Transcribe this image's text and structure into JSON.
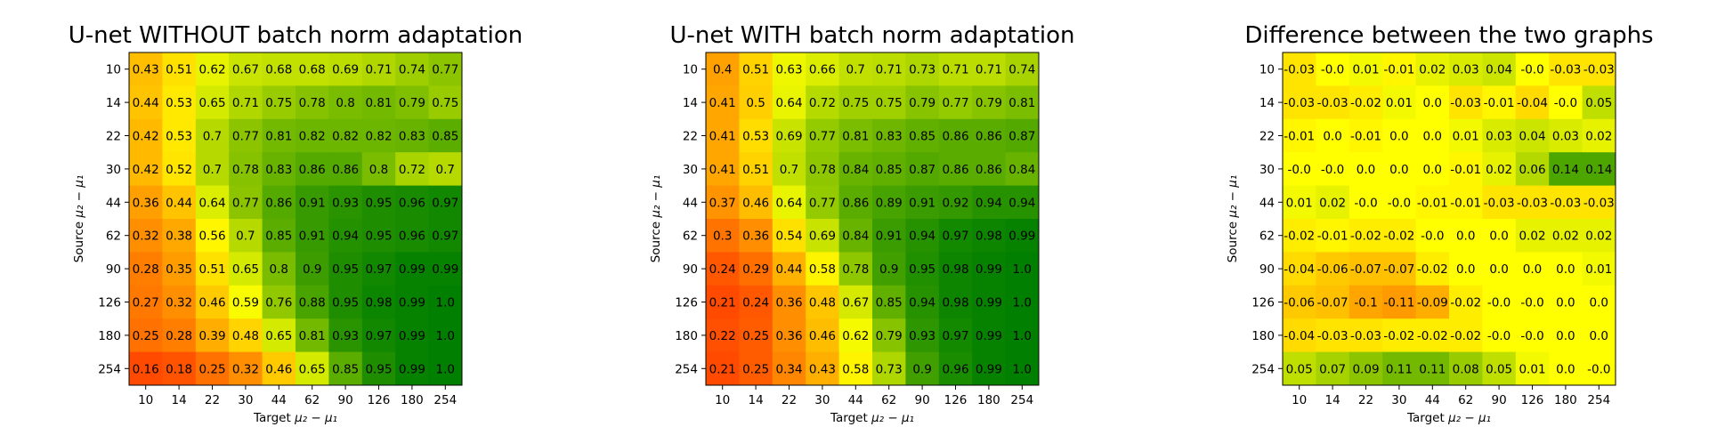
{
  "chart_data": [
    {
      "type": "heatmap",
      "title": "U-net WITHOUT batch norm adaptation",
      "xlabel": "Target",
      "ylabel": "Source",
      "axis_math": "μ₂ − μ₁",
      "x": [
        "10",
        "14",
        "22",
        "30",
        "44",
        "62",
        "90",
        "126",
        "180",
        "254"
      ],
      "y": [
        "10",
        "14",
        "22",
        "30",
        "44",
        "62",
        "90",
        "126",
        "180",
        "254"
      ],
      "values": [
        [
          0.43,
          0.51,
          0.62,
          0.67,
          0.68,
          0.68,
          0.69,
          0.71,
          0.74,
          0.77
        ],
        [
          0.44,
          0.53,
          0.65,
          0.71,
          0.75,
          0.78,
          0.8,
          0.81,
          0.79,
          0.75
        ],
        [
          0.42,
          0.53,
          0.7,
          0.77,
          0.81,
          0.82,
          0.82,
          0.82,
          0.83,
          0.85
        ],
        [
          0.42,
          0.52,
          0.7,
          0.78,
          0.83,
          0.86,
          0.86,
          0.8,
          0.72,
          0.7
        ],
        [
          0.36,
          0.44,
          0.64,
          0.77,
          0.86,
          0.91,
          0.93,
          0.95,
          0.96,
          0.97
        ],
        [
          0.32,
          0.38,
          0.56,
          0.7,
          0.85,
          0.91,
          0.94,
          0.95,
          0.96,
          0.97
        ],
        [
          0.28,
          0.35,
          0.51,
          0.65,
          0.8,
          0.9,
          0.95,
          0.97,
          0.99,
          0.99
        ],
        [
          0.27,
          0.32,
          0.46,
          0.59,
          0.76,
          0.88,
          0.95,
          0.98,
          0.99,
          1.0
        ],
        [
          0.25,
          0.28,
          0.39,
          0.48,
          0.65,
          0.81,
          0.93,
          0.97,
          0.99,
          1.0
        ],
        [
          0.16,
          0.18,
          0.25,
          0.32,
          0.46,
          0.65,
          0.85,
          0.95,
          0.99,
          1.0
        ]
      ],
      "labels": [
        [
          "0.43",
          "0.51",
          "0.62",
          "0.67",
          "0.68",
          "0.68",
          "0.69",
          "0.71",
          "0.74",
          "0.77"
        ],
        [
          "0.44",
          "0.53",
          "0.65",
          "0.71",
          "0.75",
          "0.78",
          "0.8",
          "0.81",
          "0.79",
          "0.75"
        ],
        [
          "0.42",
          "0.53",
          "0.7",
          "0.77",
          "0.81",
          "0.82",
          "0.82",
          "0.82",
          "0.83",
          "0.85"
        ],
        [
          "0.42",
          "0.52",
          "0.7",
          "0.78",
          "0.83",
          "0.86",
          "0.86",
          "0.8",
          "0.72",
          "0.7"
        ],
        [
          "0.36",
          "0.44",
          "0.64",
          "0.77",
          "0.86",
          "0.91",
          "0.93",
          "0.95",
          "0.96",
          "0.97"
        ],
        [
          "0.32",
          "0.38",
          "0.56",
          "0.7",
          "0.85",
          "0.91",
          "0.94",
          "0.95",
          "0.96",
          "0.97"
        ],
        [
          "0.28",
          "0.35",
          "0.51",
          "0.65",
          "0.8",
          "0.9",
          "0.95",
          "0.97",
          "0.99",
          "0.99"
        ],
        [
          "0.27",
          "0.32",
          "0.46",
          "0.59",
          "0.76",
          "0.88",
          "0.95",
          "0.98",
          "0.99",
          "1.0"
        ],
        [
          "0.25",
          "0.28",
          "0.39",
          "0.48",
          "0.65",
          "0.81",
          "0.93",
          "0.97",
          "0.99",
          "1.0"
        ],
        [
          "0.16",
          "0.18",
          "0.25",
          "0.32",
          "0.46",
          "0.65",
          "0.85",
          "0.95",
          "0.99",
          "1.0"
        ]
      ],
      "color_range": [
        0.16,
        1.0
      ],
      "colormap": [
        "#ff4a00",
        "#ffff00",
        "#007f00"
      ]
    },
    {
      "type": "heatmap",
      "title": "U-net WITH batch norm adaptation",
      "xlabel": "Target",
      "ylabel": "Source",
      "axis_math": "μ₂ − μ₁",
      "x": [
        "10",
        "14",
        "22",
        "30",
        "44",
        "62",
        "90",
        "126",
        "180",
        "254"
      ],
      "y": [
        "10",
        "14",
        "22",
        "30",
        "44",
        "62",
        "90",
        "126",
        "180",
        "254"
      ],
      "values": [
        [
          0.4,
          0.51,
          0.63,
          0.66,
          0.7,
          0.71,
          0.73,
          0.71,
          0.71,
          0.74
        ],
        [
          0.41,
          0.5,
          0.64,
          0.72,
          0.75,
          0.75,
          0.79,
          0.77,
          0.79,
          0.81
        ],
        [
          0.41,
          0.53,
          0.69,
          0.77,
          0.81,
          0.83,
          0.85,
          0.86,
          0.86,
          0.87
        ],
        [
          0.41,
          0.51,
          0.7,
          0.78,
          0.84,
          0.85,
          0.87,
          0.86,
          0.86,
          0.84
        ],
        [
          0.37,
          0.46,
          0.64,
          0.77,
          0.86,
          0.89,
          0.91,
          0.92,
          0.94,
          0.94
        ],
        [
          0.3,
          0.36,
          0.54,
          0.69,
          0.84,
          0.91,
          0.94,
          0.97,
          0.98,
          0.99
        ],
        [
          0.24,
          0.29,
          0.44,
          0.58,
          0.78,
          0.9,
          0.95,
          0.98,
          0.99,
          1.0
        ],
        [
          0.21,
          0.24,
          0.36,
          0.48,
          0.67,
          0.85,
          0.94,
          0.98,
          0.99,
          1.0
        ],
        [
          0.22,
          0.25,
          0.36,
          0.46,
          0.62,
          0.79,
          0.93,
          0.97,
          0.99,
          1.0
        ],
        [
          0.21,
          0.25,
          0.34,
          0.43,
          0.58,
          0.73,
          0.9,
          0.96,
          0.99,
          1.0
        ]
      ],
      "labels": [
        [
          "0.4",
          "0.51",
          "0.63",
          "0.66",
          "0.7",
          "0.71",
          "0.73",
          "0.71",
          "0.71",
          "0.74"
        ],
        [
          "0.41",
          "0.5",
          "0.64",
          "0.72",
          "0.75",
          "0.75",
          "0.79",
          "0.77",
          "0.79",
          "0.81"
        ],
        [
          "0.41",
          "0.53",
          "0.69",
          "0.77",
          "0.81",
          "0.83",
          "0.85",
          "0.86",
          "0.86",
          "0.87"
        ],
        [
          "0.41",
          "0.51",
          "0.7",
          "0.78",
          "0.84",
          "0.85",
          "0.87",
          "0.86",
          "0.86",
          "0.84"
        ],
        [
          "0.37",
          "0.46",
          "0.64",
          "0.77",
          "0.86",
          "0.89",
          "0.91",
          "0.92",
          "0.94",
          "0.94"
        ],
        [
          "0.3",
          "0.36",
          "0.54",
          "0.69",
          "0.84",
          "0.91",
          "0.94",
          "0.97",
          "0.98",
          "0.99"
        ],
        [
          "0.24",
          "0.29",
          "0.44",
          "0.58",
          "0.78",
          "0.9",
          "0.95",
          "0.98",
          "0.99",
          "1.0"
        ],
        [
          "0.21",
          "0.24",
          "0.36",
          "0.48",
          "0.67",
          "0.85",
          "0.94",
          "0.98",
          "0.99",
          "1.0"
        ],
        [
          "0.22",
          "0.25",
          "0.36",
          "0.46",
          "0.62",
          "0.79",
          "0.93",
          "0.97",
          "0.99",
          "1.0"
        ],
        [
          "0.21",
          "0.25",
          "0.34",
          "0.43",
          "0.58",
          "0.73",
          "0.9",
          "0.96",
          "0.99",
          "1.0"
        ]
      ],
      "color_range": [
        0.21,
        1.0
      ],
      "colormap": [
        "#ff4a00",
        "#ffff00",
        "#007f00"
      ]
    },
    {
      "type": "heatmap",
      "title": "Difference between the two graphs",
      "xlabel": "Target",
      "ylabel": "Source",
      "axis_math": "μ₂ − μ₁",
      "x": [
        "10",
        "14",
        "22",
        "30",
        "44",
        "62",
        "90",
        "126",
        "180",
        "254"
      ],
      "y": [
        "10",
        "14",
        "22",
        "30",
        "44",
        "62",
        "90",
        "126",
        "180",
        "254"
      ],
      "values": [
        [
          -0.03,
          -0.0,
          0.01,
          -0.01,
          0.02,
          0.03,
          0.04,
          -0.0,
          -0.03,
          -0.03
        ],
        [
          -0.03,
          -0.03,
          -0.02,
          0.01,
          0.0,
          -0.03,
          -0.01,
          -0.04,
          -0.0,
          0.05
        ],
        [
          -0.01,
          0.0,
          -0.01,
          0.0,
          0.0,
          0.01,
          0.03,
          0.04,
          0.03,
          0.02
        ],
        [
          -0.0,
          -0.0,
          0.0,
          0.0,
          0.0,
          -0.01,
          0.02,
          0.06,
          0.14,
          0.14
        ],
        [
          0.01,
          0.02,
          -0.0,
          -0.0,
          -0.01,
          -0.01,
          -0.03,
          -0.03,
          -0.03,
          -0.03
        ],
        [
          -0.02,
          -0.01,
          -0.02,
          -0.02,
          -0.0,
          0.0,
          0.0,
          0.02,
          0.02,
          0.02
        ],
        [
          -0.04,
          -0.06,
          -0.07,
          -0.07,
          -0.02,
          0.0,
          0.0,
          0.0,
          0.0,
          0.01
        ],
        [
          -0.06,
          -0.07,
          -0.1,
          -0.11,
          -0.09,
          -0.02,
          -0.0,
          -0.0,
          0.0,
          0.0
        ],
        [
          -0.04,
          -0.03,
          -0.03,
          -0.02,
          -0.02,
          -0.02,
          -0.0,
          -0.0,
          0.0,
          0.0
        ],
        [
          0.05,
          0.07,
          0.09,
          0.11,
          0.11,
          0.08,
          0.05,
          0.01,
          0.0,
          -0.0
        ]
      ],
      "labels": [
        [
          "-0.03",
          "-0.0",
          "0.01",
          "-0.01",
          "0.02",
          "0.03",
          "0.04",
          "-0.0",
          "-0.03",
          "-0.03"
        ],
        [
          "-0.03",
          "-0.03",
          "-0.02",
          "0.01",
          "0.0",
          "-0.03",
          "-0.01",
          "-0.04",
          "-0.0",
          "0.05"
        ],
        [
          "-0.01",
          "0.0",
          "-0.01",
          "0.0",
          "0.0",
          "0.01",
          "0.03",
          "0.04",
          "0.03",
          "0.02"
        ],
        [
          "-0.0",
          "-0.0",
          "0.0",
          "0.0",
          "0.0",
          "-0.01",
          "0.02",
          "0.06",
          "0.14",
          "0.14"
        ],
        [
          "0.01",
          "0.02",
          "-0.0",
          "-0.0",
          "-0.01",
          "-0.01",
          "-0.03",
          "-0.03",
          "-0.03",
          "-0.03"
        ],
        [
          "-0.02",
          "-0.01",
          "-0.02",
          "-0.02",
          "-0.0",
          "0.0",
          "0.0",
          "0.02",
          "0.02",
          "0.02"
        ],
        [
          "-0.04",
          "-0.06",
          "-0.07",
          "-0.07",
          "-0.02",
          "0.0",
          "0.0",
          "0.0",
          "0.0",
          "0.01"
        ],
        [
          "-0.06",
          "-0.07",
          "-0.1",
          "-0.11",
          "-0.09",
          "-0.02",
          "-0.0",
          "-0.0",
          "0.0",
          "0.0"
        ],
        [
          "-0.04",
          "-0.03",
          "-0.03",
          "-0.02",
          "-0.02",
          "-0.02",
          "-0.0",
          "-0.0",
          "0.0",
          "0.0"
        ],
        [
          "0.05",
          "0.07",
          "0.09",
          "0.11",
          "0.11",
          "0.08",
          "0.05",
          "0.01",
          "0.0",
          "-0.0"
        ]
      ],
      "color_range": [
        -0.2,
        0.2
      ],
      "colormap": [
        "#ff4a00",
        "#ffff00",
        "#007f00"
      ]
    }
  ]
}
